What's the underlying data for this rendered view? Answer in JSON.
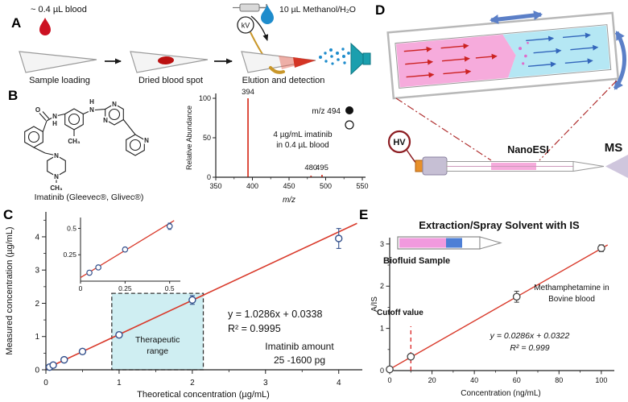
{
  "panelA": {
    "label": "A",
    "blood_label": "~ 0.4 µL blood",
    "kv_label": "kV",
    "solvent_label": "10 µL Methanol/H₂O",
    "steps": [
      "Sample loading",
      "Dried blood spot",
      "Elution and detection"
    ]
  },
  "panelB": {
    "label": "B",
    "compound_label": "Imatinib (Gleevec®, Glivec®)",
    "atoms": [
      "O",
      "N",
      "H",
      "CH₃",
      "H",
      "N",
      "N",
      "N",
      "N",
      "N",
      "N",
      "CH₃"
    ]
  },
  "panelC": {
    "label": "C"
  },
  "panelD": {
    "label": "D",
    "hv": "HV",
    "nanoesi": "NanoESI",
    "ms": "MS"
  },
  "panelE": {
    "label": "E",
    "solvent_text": "Extraction/Spray Solvent with IS",
    "biofluid_text": "Biofluid Sample",
    "cutoff_text": "Cutoff value",
    "analyte_line1": "Methamphetamine in",
    "analyte_line2": "Bovine blood"
  },
  "chart_data": [
    {
      "id": "mass-spectrum",
      "type": "bar",
      "xlabel": "m/z",
      "ylabel": "Relative Abundance",
      "xlim": [
        350,
        550
      ],
      "ylim": [
        0,
        100
      ],
      "xticks": [
        350,
        400,
        450,
        500,
        550
      ],
      "yticks": [
        0,
        50,
        100
      ],
      "peaks": [
        {
          "mz": 394,
          "intensity": 100,
          "label": "394"
        },
        {
          "mz": 480,
          "intensity": 2,
          "label": "480"
        },
        {
          "mz": 495,
          "intensity": 3,
          "label": "495"
        }
      ],
      "legend": {
        "text": "m/z 494",
        "markers": [
          "filled-circle",
          "open-circle"
        ]
      },
      "annotation": [
        "4 µg/mL imatinib",
        "in 0.4 µL blood"
      ],
      "bar_color": "#d93a2b"
    },
    {
      "id": "imatinib-calibration",
      "type": "scatter",
      "xlabel": "Theoretical concentration (µg/mL)",
      "ylabel": "Measured concentration (µg/mL)",
      "xlim": [
        0,
        4.3
      ],
      "ylim": [
        0,
        4.75
      ],
      "xticks": [
        0,
        1,
        2,
        3,
        4
      ],
      "yticks": [
        0,
        1,
        2,
        3,
        4
      ],
      "x": [
        0.05,
        0.1,
        0.25,
        0.5,
        1,
        2,
        4
      ],
      "y": [
        0.08,
        0.14,
        0.3,
        0.55,
        1.05,
        2.1,
        3.95
      ],
      "yerr": [
        0.03,
        0.03,
        0.04,
        0.05,
        0.08,
        0.13,
        0.3
      ],
      "fit": {
        "slope": 1.0286,
        "intercept": 0.0338
      },
      "equation": "y = 1.0286x + 0.0338",
      "r2": "R² = 0.9995",
      "note": [
        "Imatinib amount",
        "25 -1600 pg"
      ],
      "band": {
        "x0": 0.9,
        "x1": 2.15,
        "y1": 2.3,
        "label": [
          "Therapeutic",
          "range"
        ],
        "fill": "#cfeef2",
        "stroke": "#333333"
      },
      "inset": {
        "xlim": [
          0,
          0.56
        ],
        "ylim": [
          0,
          0.58
        ],
        "xticks": [
          0,
          0.25,
          0.5
        ],
        "yticks": [
          0.25,
          0.5
        ],
        "x": [
          0.05,
          0.1,
          0.25,
          0.5
        ],
        "y": [
          0.08,
          0.13,
          0.3,
          0.52
        ],
        "yerr": [
          0.02,
          0.02,
          0.02,
          0.03
        ]
      },
      "line_color": "#d93a2b",
      "marker_color": "#33508c"
    },
    {
      "id": "methamphetamine-calibration",
      "type": "scatter",
      "xlabel": "Concentration (ng/mL)",
      "ylabel": "A/IS",
      "xlim": [
        0,
        105
      ],
      "ylim": [
        0,
        3.15
      ],
      "xticks": [
        0,
        20,
        40,
        60,
        80,
        100
      ],
      "yticks": [
        0,
        1,
        2,
        3
      ],
      "x": [
        0,
        10,
        60,
        100
      ],
      "y": [
        0.03,
        0.33,
        1.75,
        2.9
      ],
      "yerr": [
        0.02,
        0.05,
        0.13,
        0.08
      ],
      "fit": {
        "slope": 0.0286,
        "intercept": 0.0322
      },
      "equation": "y = 0.0286x + 0.0322",
      "r2": "R² = 0.999",
      "cutoff": {
        "x": 10,
        "line_top": 1.05
      },
      "line_color": "#d93a2b",
      "marker_color": "#444444"
    }
  ]
}
